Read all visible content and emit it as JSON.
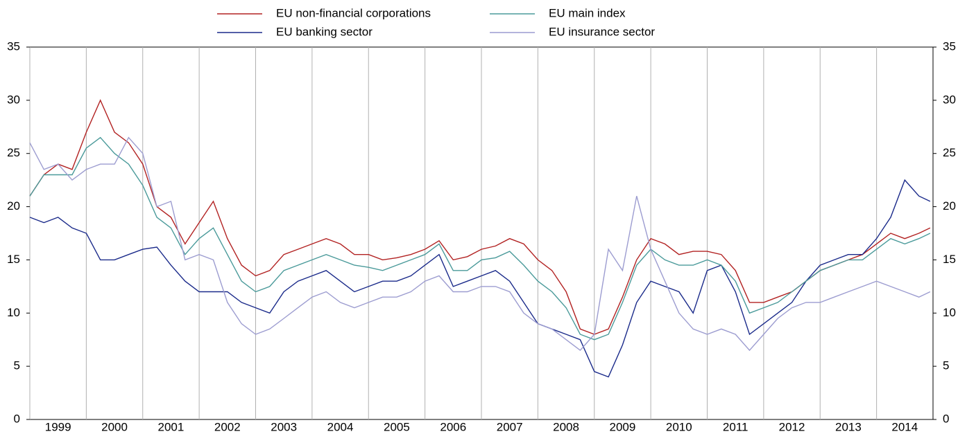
{
  "chart_data": {
    "type": "line",
    "x": [
      1999,
      1999.25,
      1999.5,
      1999.75,
      2000,
      2000.25,
      2000.5,
      2000.75,
      2001,
      2001.25,
      2001.5,
      2001.75,
      2002,
      2002.25,
      2002.5,
      2002.75,
      2003,
      2003.25,
      2003.5,
      2003.75,
      2004,
      2004.25,
      2004.5,
      2004.75,
      2005,
      2005.25,
      2005.5,
      2005.75,
      2006,
      2006.25,
      2006.5,
      2006.75,
      2007,
      2007.25,
      2007.5,
      2007.75,
      2008,
      2008.25,
      2008.5,
      2008.75,
      2009,
      2009.25,
      2009.5,
      2009.75,
      2010,
      2010.25,
      2010.5,
      2010.75,
      2011,
      2011.25,
      2011.5,
      2011.75,
      2012,
      2012.25,
      2012.5,
      2012.75,
      2013,
      2013.25,
      2013.5,
      2013.75,
      2014,
      2014.25,
      2014.5,
      2014.75,
      2014.95
    ],
    "series": [
      {
        "name": "EU non-financial corporations",
        "color": "#b22222",
        "values": [
          21,
          23,
          24,
          23.5,
          27,
          30,
          27,
          26,
          24,
          20,
          19,
          16.5,
          18.5,
          20.5,
          17,
          14.5,
          13.5,
          14,
          15.5,
          16,
          16.5,
          17,
          16.5,
          15.5,
          15.5,
          15,
          15.2,
          15.5,
          16,
          16.8,
          15,
          15.3,
          16,
          16.3,
          17,
          16.5,
          15,
          14,
          12,
          8.5,
          8,
          8.5,
          11.5,
          15,
          17,
          16.5,
          15.5,
          15.8,
          15.8,
          15.5,
          14,
          11,
          11,
          11.5,
          12,
          13,
          14,
          14.5,
          15,
          15.5,
          16.5,
          17.5,
          17,
          17.5,
          18
        ]
      },
      {
        "name": "EU banking sector",
        "color": "#1a2a8a",
        "values": [
          19,
          18.5,
          19,
          18,
          17.5,
          15,
          15,
          15.5,
          16,
          16.2,
          14.5,
          13,
          12,
          12,
          12,
          11,
          10.5,
          10,
          12,
          13,
          13.5,
          14,
          13,
          12,
          12.5,
          13,
          13,
          13.5,
          14.5,
          15.5,
          12.5,
          13,
          13.5,
          14,
          13,
          11,
          9,
          8.5,
          8,
          7.5,
          4.5,
          4,
          7,
          11,
          13,
          12.5,
          12,
          10,
          14,
          14.5,
          12,
          8,
          9,
          10,
          11,
          13,
          14.5,
          15,
          15.5,
          15.5,
          17,
          19,
          22.5,
          21,
          20.5
        ]
      },
      {
        "name": "EU main index",
        "color": "#4a9a9a",
        "values": [
          21,
          23,
          23,
          23,
          25.5,
          26.5,
          25,
          24,
          22,
          19,
          18,
          15.5,
          17,
          18,
          15.5,
          13,
          12,
          12.5,
          14,
          14.5,
          15,
          15.5,
          15,
          14.5,
          14.3,
          14,
          14.5,
          15,
          15.5,
          16.5,
          14,
          14,
          15,
          15.2,
          15.8,
          14.5,
          13,
          12,
          10.5,
          8,
          7.5,
          8,
          11,
          14.5,
          16,
          15,
          14.5,
          14.5,
          15,
          14.5,
          13,
          10,
          10.5,
          11,
          12,
          13,
          14,
          14.5,
          15,
          15,
          16,
          17,
          16.5,
          17,
          17.5
        ]
      },
      {
        "name": "EU insurance sector",
        "color": "#9c9cd0",
        "values": [
          26,
          23.5,
          24,
          22.5,
          23.5,
          24,
          24,
          26.5,
          25,
          20,
          20.5,
          15,
          15.5,
          15,
          11,
          9,
          8,
          8.5,
          9.5,
          10.5,
          11.5,
          12,
          11,
          10.5,
          11,
          11.5,
          11.5,
          12,
          13,
          13.5,
          12,
          12,
          12.5,
          12.5,
          12,
          10,
          9,
          8.5,
          7.5,
          6.5,
          8,
          16,
          14,
          21,
          16,
          13,
          10,
          8.5,
          8,
          8.5,
          8,
          6.5,
          8,
          9.5,
          10.5,
          11,
          11,
          11.5,
          12,
          12.5,
          13,
          12.5,
          12,
          11.5,
          12
        ]
      }
    ],
    "xlim": [
      1999,
      2015
    ],
    "xticks": [
      1999,
      2000,
      2001,
      2002,
      2003,
      2004,
      2005,
      2006,
      2007,
      2008,
      2009,
      2010,
      2011,
      2012,
      2013,
      2014
    ],
    "ylim": [
      0,
      35
    ],
    "yticks": [
      0,
      5,
      10,
      15,
      20,
      25,
      30,
      35
    ],
    "grid": true
  }
}
